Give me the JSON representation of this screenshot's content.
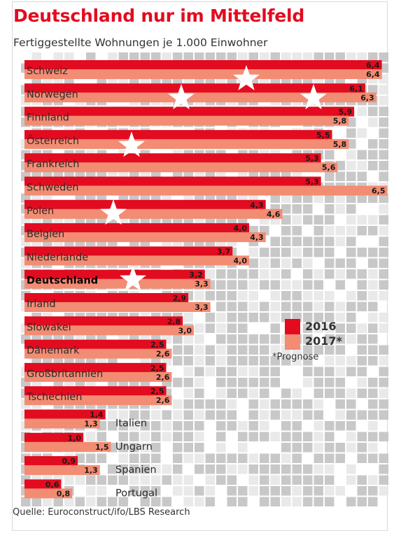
{
  "chart_data": {
    "type": "bar",
    "orientation": "horizontal",
    "title": "Deutschland nur im Mittelfeld",
    "subtitle": "Fertiggestellte Wohnungen je 1.000 Einwohner",
    "categories": [
      "Schweiz",
      "Norwegen",
      "Finnland",
      "Österreich",
      "Frankreich",
      "Schweden",
      "Polen",
      "Belgien",
      "Niederlande",
      "Deutschland",
      "Irland",
      "Slowakei",
      "Dänemark",
      "Großbritannien",
      "Tschechien",
      "Italien",
      "Ungarn",
      "Spanien",
      "Portugal"
    ],
    "highlight": "Deutschland",
    "series": [
      {
        "name": "2016",
        "values": [
          6.4,
          6.1,
          5.9,
          5.5,
          5.3,
          5.3,
          4.3,
          4.0,
          3.7,
          3.2,
          2.9,
          2.8,
          2.5,
          2.5,
          2.5,
          1.4,
          1.0,
          0.9,
          0.6
        ],
        "color": "#e30b1f"
      },
      {
        "name": "2017*",
        "values": [
          6.4,
          6.3,
          5.8,
          5.8,
          5.6,
          6.5,
          4.6,
          4.3,
          4.0,
          3.3,
          3.3,
          3.0,
          2.6,
          2.6,
          2.6,
          1.3,
          1.5,
          1.3,
          0.8
        ],
        "color": "#f28c73"
      }
    ],
    "legend_note": "*Prognose",
    "legend_position": "right",
    "source": "Quelle: Euroconstruct/ifo/LBS Research",
    "grid": false
  }
}
